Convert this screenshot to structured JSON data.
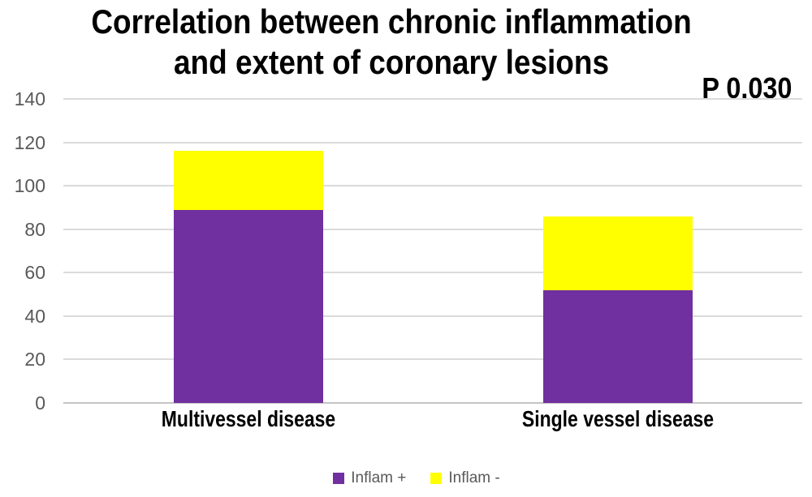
{
  "title": {
    "line1": "Correlation between chronic inflammation",
    "line2": "and extent of coronary lesions"
  },
  "p_value_label": "P 0.030",
  "chart_data": {
    "type": "bar",
    "stacked": true,
    "title": "Correlation between chronic inflammation and extent of coronary lesions",
    "annotation": "P 0.030",
    "categories": [
      "Multivessel disease",
      "Single vessel disease"
    ],
    "series": [
      {
        "name": "Inflam +",
        "color": "#7030A0",
        "values": [
          89,
          52
        ]
      },
      {
        "name": "Inflam -",
        "color": "#FFFF00",
        "values": [
          27,
          34
        ]
      }
    ],
    "stack_totals": [
      116,
      86
    ],
    "xlabel": "",
    "ylabel": "",
    "ylim": [
      0,
      140
    ],
    "yticks": [
      0,
      20,
      40,
      60,
      80,
      100,
      120,
      140
    ],
    "grid": "horizontal-only",
    "legend_position": "bottom"
  },
  "style": {
    "background": "#FFFFFF",
    "title_color": "#000000",
    "axis_text_color": "#595959",
    "legend_text_color": "#595959",
    "gridline_color": "#DBDBDB",
    "baseline_color": "#C4C4C4",
    "inflam_plus_color": "#7030A0",
    "inflam_minus_color": "#FFFF00"
  }
}
